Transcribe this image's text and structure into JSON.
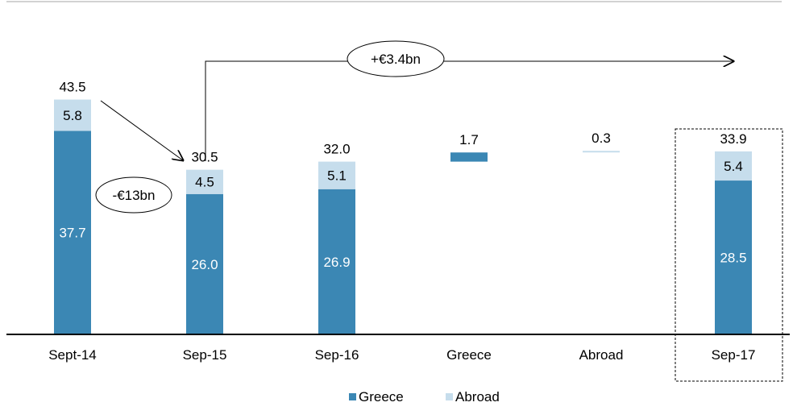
{
  "chart_data": {
    "type": "bar",
    "subtype": "stacked-waterfall",
    "categories": [
      "Sept-14",
      "Sep-15",
      "Sep-16",
      "Greece",
      "Abroad",
      "Sep-17"
    ],
    "series": [
      {
        "name": "Greece",
        "color": "#3b87b4",
        "values": [
          37.7,
          26.0,
          26.9,
          1.7,
          null,
          28.5
        ]
      },
      {
        "name": "Abroad",
        "color": "#c6ddec",
        "values": [
          5.8,
          4.5,
          5.1,
          null,
          0.3,
          5.4
        ]
      }
    ],
    "totals": [
      43.5,
      30.5,
      32.0,
      1.7,
      0.3,
      33.9
    ],
    "bar_labels": {
      "greece": [
        "37.7",
        "26.0",
        "26.9",
        "",
        "",
        "28.5"
      ],
      "abroad": [
        "5.8",
        "4.5",
        "5.1",
        "",
        "",
        "5.4"
      ],
      "totals": [
        "43.5",
        "30.5",
        "32.0",
        "1.7",
        "0.3",
        "33.9"
      ]
    },
    "annotations": {
      "decline": "-€13bn",
      "increase": "+€3.4bn"
    },
    "highlighted_category": "Sep-17",
    "legend": {
      "position": "bottom",
      "items": [
        "Greece",
        "Abroad"
      ]
    },
    "ylim": [
      0,
      48
    ],
    "grid": false
  }
}
